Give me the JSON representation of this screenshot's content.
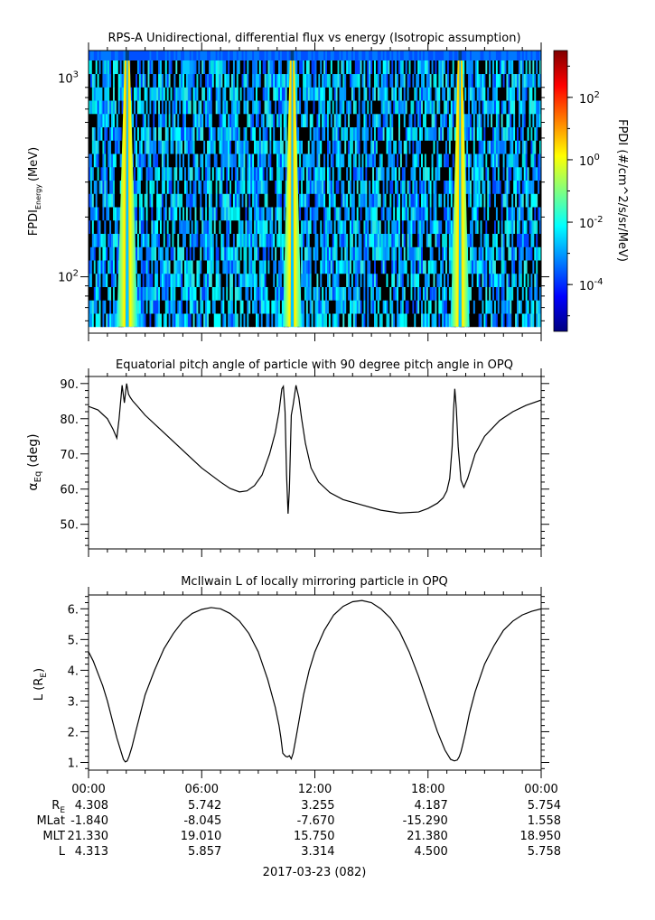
{
  "chart_data": [
    {
      "type": "heatmap",
      "title": "RPS-A Unidirectional, differential flux vs energy (Isotropic assumption)",
      "ylabel_main": "FPDI",
      "ylabel_sub": "Energy",
      "ylabel_unit": "(MeV)",
      "yscale": "log",
      "ylim": [
        52,
        1380
      ],
      "yticks": [
        {
          "value": 100,
          "base": "10",
          "exp": "2"
        },
        {
          "value": 1000,
          "base": "10",
          "exp": "3"
        }
      ],
      "x_hours": [
        0,
        24
      ],
      "energy_bin_edges": [
        56,
        1230,
        1380
      ],
      "high_flux_bands": [
        {
          "start_hour": 1.5,
          "end_hour": 2.6
        },
        {
          "start_hour": 10.3,
          "end_hour": 11.3
        },
        {
          "start_hour": 19.2,
          "end_hour": 20.2
        }
      ],
      "colorbar": {
        "label": "FPDI (#/cm^2/s/sr/MeV)",
        "scale": "log",
        "range_log10": [
          -5.5,
          3.5
        ],
        "ticks": [
          {
            "value": -4,
            "base": "10",
            "exp": "-4"
          },
          {
            "value": -2,
            "base": "10",
            "exp": "-2"
          },
          {
            "value": 0,
            "base": "10",
            "exp": "0"
          },
          {
            "value": 2,
            "base": "10",
            "exp": "2"
          }
        ],
        "colors": [
          "#000080",
          "#0000ff",
          "#0080ff",
          "#00ffff",
          "#80ff80",
          "#ffff00",
          "#ff8000",
          "#ff0000",
          "#800000"
        ]
      }
    },
    {
      "type": "line",
      "title": "Equatorial pitch angle of particle with 90 degree pitch angle in OPQ",
      "ylabel_symbol": "α",
      "ylabel_sub": "Eq",
      "ylabel_unit": "(deg)",
      "ylim": [
        43,
        92
      ],
      "yticks": [
        50,
        60,
        70,
        80,
        90
      ],
      "ytick_labels": [
        "50.",
        "60.",
        "70.",
        "80.",
        "90."
      ],
      "series": [
        {
          "x": [
            0,
            0.5,
            1.0,
            1.3,
            1.5,
            1.62,
            1.78,
            1.9,
            2.02,
            2.12,
            2.22,
            2.35,
            2.6,
            3.0,
            4.0,
            5.0,
            6.0,
            7.0,
            7.5,
            8.0,
            8.4,
            8.8,
            9.2,
            9.6,
            9.9,
            10.1,
            10.25,
            10.33,
            10.42,
            10.5,
            10.58,
            10.65,
            10.75,
            10.85,
            11.0,
            11.15,
            11.3,
            11.5,
            11.8,
            12.2,
            12.8,
            13.5,
            14.5,
            15.5,
            16.5,
            17.5,
            18.0,
            18.5,
            18.8,
            19.0,
            19.15,
            19.28,
            19.35,
            19.42,
            19.5,
            19.6,
            19.75,
            19.9,
            20.1,
            20.5,
            21.0,
            21.8,
            22.5,
            23.2,
            24.0
          ],
          "y": [
            83.5,
            82.5,
            80.0,
            77.0,
            74.5,
            80.0,
            89.5,
            84.5,
            90.0,
            87.0,
            86.0,
            85.0,
            83.5,
            81.0,
            76.0,
            71.0,
            66.0,
            62.0,
            60.2,
            59.2,
            59.5,
            61.0,
            64.0,
            70.0,
            76.0,
            82.0,
            88.5,
            89.2,
            82.0,
            64.0,
            53.0,
            60.0,
            81.0,
            84.0,
            89.5,
            86.0,
            80.0,
            73.0,
            66.0,
            62.0,
            59.0,
            57.0,
            55.5,
            54.0,
            53.2,
            53.5,
            54.5,
            56.0,
            57.5,
            59.5,
            63.0,
            72.0,
            82.0,
            88.5,
            83.0,
            72.0,
            62.5,
            60.5,
            63.0,
            70.0,
            75.0,
            79.5,
            82.0,
            83.8,
            85.3
          ]
        }
      ]
    },
    {
      "type": "line",
      "title": "McIlwain L of locally mirroring particle in OPQ",
      "ylabel_main": "L (R",
      "ylabel_sub": "E",
      "ylabel_close": ")",
      "ylim": [
        0.75,
        6.45
      ],
      "yticks": [
        1,
        2,
        3,
        4,
        5,
        6
      ],
      "ytick_labels": [
        "1.",
        "2.",
        "3.",
        "4.",
        "5.",
        "6."
      ],
      "series": [
        {
          "x": [
            0,
            0.25,
            0.5,
            0.75,
            1.0,
            1.25,
            1.5,
            1.75,
            1.85,
            1.95,
            2.05,
            2.15,
            2.3,
            2.5,
            2.75,
            3.0,
            3.5,
            4.0,
            4.5,
            5.0,
            5.5,
            6.0,
            6.5,
            7.0,
            7.5,
            8.0,
            8.5,
            9.0,
            9.5,
            9.9,
            10.1,
            10.2,
            10.3,
            10.45,
            10.55,
            10.65,
            10.75,
            10.85,
            11.0,
            11.2,
            11.4,
            11.7,
            12.0,
            12.5,
            13.0,
            13.5,
            14.0,
            14.5,
            15.0,
            15.5,
            16.0,
            16.5,
            17.0,
            17.5,
            18.0,
            18.5,
            18.9,
            19.2,
            19.4,
            19.55,
            19.65,
            19.75,
            19.85,
            20.0,
            20.2,
            20.5,
            21.0,
            21.5,
            22.0,
            22.5,
            23.0,
            23.5,
            24.0
          ],
          "y": [
            4.6,
            4.3,
            3.9,
            3.5,
            3.0,
            2.4,
            1.8,
            1.3,
            1.1,
            1.02,
            1.05,
            1.2,
            1.5,
            2.0,
            2.6,
            3.2,
            4.0,
            4.7,
            5.2,
            5.6,
            5.85,
            5.98,
            6.04,
            6.0,
            5.85,
            5.6,
            5.2,
            4.6,
            3.7,
            2.8,
            2.2,
            1.8,
            1.3,
            1.2,
            1.18,
            1.22,
            1.12,
            1.3,
            1.8,
            2.5,
            3.2,
            4.0,
            4.6,
            5.3,
            5.8,
            6.08,
            6.23,
            6.27,
            6.2,
            6.0,
            5.7,
            5.25,
            4.6,
            3.8,
            2.9,
            2.0,
            1.4,
            1.1,
            1.05,
            1.08,
            1.18,
            1.35,
            1.6,
            2.0,
            2.6,
            3.3,
            4.2,
            4.8,
            5.3,
            5.6,
            5.8,
            5.92,
            6.0
          ]
        }
      ]
    }
  ],
  "xaxis": {
    "hours": [
      0,
      6,
      12,
      18,
      24
    ],
    "tick_labels": [
      "00:00",
      "06:00",
      "12:00",
      "18:00",
      "00:00"
    ],
    "date_label": "2017-03-23 (082)",
    "ephemeris": [
      {
        "label": "R",
        "label_sub": "E",
        "values": [
          "4.308",
          "5.742",
          "3.255",
          "4.187",
          "5.754"
        ]
      },
      {
        "label": "MLat",
        "label_sub": "",
        "values": [
          "-1.840",
          "-8.045",
          "-7.670",
          "-15.290",
          "1.558"
        ]
      },
      {
        "label": "MLT",
        "label_sub": "",
        "values": [
          "21.330",
          "19.010",
          "15.750",
          "21.380",
          "18.950"
        ]
      },
      {
        "label": "L",
        "label_sub": "",
        "values": [
          "4.313",
          "5.857",
          "3.314",
          "4.500",
          "5.758"
        ]
      }
    ]
  }
}
